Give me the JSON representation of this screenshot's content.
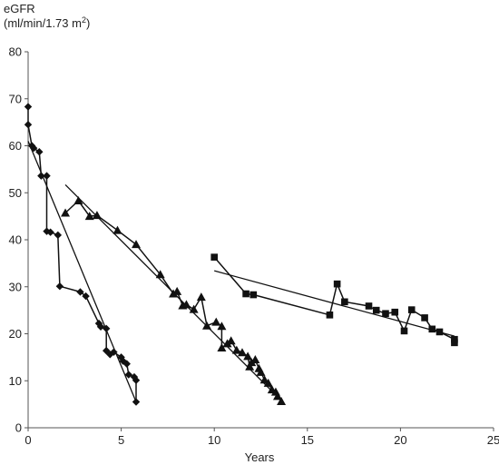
{
  "chart_data": {
    "type": "scatter",
    "title": "",
    "xlabel": "Years",
    "ylabel": "eGFR",
    "ylabel_unit_main": "(ml/min/1.73 m",
    "ylabel_unit_sup": "2",
    "ylabel_unit_close": ")",
    "xlim": [
      0,
      25
    ],
    "ylim": [
      0,
      80
    ],
    "x_ticks": [
      0,
      5,
      10,
      15,
      20,
      25
    ],
    "y_ticks": [
      0,
      10,
      20,
      30,
      40,
      50,
      60,
      70,
      80
    ],
    "grid": false,
    "legend": "none",
    "series": [
      {
        "marker": "diamond",
        "points": [
          [
            0.0,
            68.3
          ],
          [
            0.0,
            64.5
          ],
          [
            0.2,
            60.0
          ],
          [
            0.3,
            59.5
          ],
          [
            0.6,
            58.7
          ],
          [
            0.7,
            53.6
          ],
          [
            1.0,
            53.6
          ],
          [
            1.0,
            41.8
          ],
          [
            1.2,
            41.6
          ],
          [
            1.6,
            41.0
          ],
          [
            1.7,
            30.1
          ],
          [
            2.8,
            28.9
          ],
          [
            3.1,
            28.0
          ],
          [
            3.8,
            22.2
          ],
          [
            3.9,
            21.5
          ],
          [
            4.2,
            21.1
          ],
          [
            4.2,
            16.4
          ],
          [
            4.4,
            15.6
          ],
          [
            4.6,
            16.1
          ],
          [
            5.0,
            15.0
          ],
          [
            5.1,
            14.2
          ],
          [
            5.3,
            13.6
          ],
          [
            5.4,
            11.3
          ],
          [
            5.7,
            10.8
          ],
          [
            5.8,
            10.1
          ],
          [
            5.8,
            5.5
          ]
        ],
        "trend": [
          [
            0.0,
            61.0
          ],
          [
            5.8,
            5.5
          ]
        ]
      },
      {
        "marker": "triangle",
        "points": [
          [
            2.0,
            45.7
          ],
          [
            2.7,
            48.3
          ],
          [
            3.3,
            45.0
          ],
          [
            3.7,
            45.2
          ],
          [
            4.8,
            42.0
          ],
          [
            5.8,
            39.0
          ],
          [
            7.1,
            32.6
          ],
          [
            7.8,
            28.5
          ],
          [
            8.0,
            29.0
          ],
          [
            8.3,
            26.0
          ],
          [
            8.5,
            26.2
          ],
          [
            8.9,
            25.2
          ],
          [
            9.3,
            27.8
          ],
          [
            9.6,
            21.7
          ],
          [
            10.1,
            22.5
          ],
          [
            10.4,
            21.6
          ],
          [
            10.4,
            17.0
          ],
          [
            10.7,
            17.9
          ],
          [
            10.9,
            18.5
          ],
          [
            11.2,
            16.5
          ],
          [
            11.5,
            16.0
          ],
          [
            11.8,
            15.2
          ],
          [
            11.9,
            13.0
          ],
          [
            12.0,
            13.9
          ],
          [
            12.2,
            14.5
          ],
          [
            12.4,
            12.6
          ],
          [
            12.5,
            11.8
          ],
          [
            12.7,
            10.2
          ],
          [
            12.9,
            9.5
          ],
          [
            13.1,
            8.1
          ],
          [
            13.3,
            7.6
          ],
          [
            13.4,
            6.7
          ],
          [
            13.6,
            5.6
          ]
        ],
        "trend": [
          [
            2.0,
            51.7
          ],
          [
            13.6,
            5.8
          ]
        ]
      },
      {
        "marker": "square",
        "points": [
          [
            10.0,
            36.3
          ],
          [
            11.7,
            28.5
          ],
          [
            12.1,
            28.3
          ],
          [
            16.2,
            24.0
          ],
          [
            16.6,
            30.6
          ],
          [
            17.0,
            26.8
          ],
          [
            18.3,
            25.9
          ],
          [
            18.7,
            25.0
          ],
          [
            19.2,
            24.3
          ],
          [
            19.7,
            24.6
          ],
          [
            20.2,
            20.6
          ],
          [
            20.6,
            25.1
          ],
          [
            21.3,
            23.4
          ],
          [
            21.7,
            21.0
          ],
          [
            22.1,
            20.4
          ],
          [
            22.9,
            18.8
          ],
          [
            22.9,
            18.1
          ]
        ],
        "trend": [
          [
            10.0,
            33.4
          ],
          [
            22.9,
            19.5
          ]
        ]
      }
    ]
  }
}
